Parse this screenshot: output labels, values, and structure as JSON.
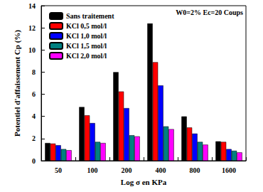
{
  "chart_data": {
    "type": "bar",
    "x_label": "Log σ en KPa",
    "y_label": "Potentiel d'affaissement Cp (%)",
    "annotations": [
      "W0=2% Ec=20 Coups"
    ],
    "categories": [
      "50",
      "100",
      "200",
      "400",
      "800",
      "1600"
    ],
    "series": [
      {
        "name": "Sans traitement",
        "color": "#000000",
        "values": [
          1.6,
          4.85,
          8.0,
          12.4,
          4.0,
          1.75
        ]
      },
      {
        "name": "KCl 0,5 mol/l",
        "color": "#ff0000",
        "values": [
          1.55,
          4.1,
          6.25,
          8.9,
          3.0,
          1.7
        ]
      },
      {
        "name": "KCl 1,0 mol/l",
        "color": "#0000ff",
        "values": [
          1.4,
          3.4,
          4.75,
          6.8,
          2.45,
          1.05
        ]
      },
      {
        "name": "KCl 1,5 mol/l",
        "color": "#008080",
        "values": [
          1.05,
          1.7,
          2.3,
          3.1,
          1.7,
          0.9
        ]
      },
      {
        "name": "KCl 2,0 mol/l",
        "color": "#ff00ff",
        "values": [
          0.95,
          1.6,
          2.2,
          2.85,
          1.45,
          0.75
        ]
      }
    ],
    "ylim": [
      0,
      14
    ],
    "yticks": [
      0,
      2,
      4,
      6,
      8,
      10,
      12,
      14
    ],
    "grid": false,
    "legend": "upper left"
  }
}
